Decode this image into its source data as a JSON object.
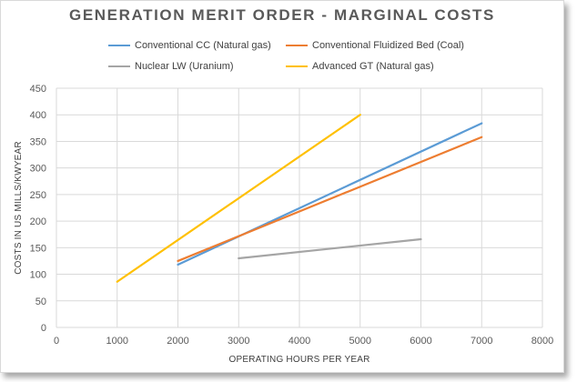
{
  "chart_data": {
    "type": "line",
    "title": "GENERATION MERIT ORDER - MARGINAL COSTS",
    "xlabel": "OPERATING HOURS PER YEAR",
    "ylabel": "COSTS IN US MILLS/KWYEAR",
    "xlim": [
      0,
      8000
    ],
    "ylim": [
      0,
      450
    ],
    "xticks": [
      0,
      1000,
      2000,
      3000,
      4000,
      5000,
      6000,
      7000,
      8000
    ],
    "yticks": [
      0,
      50,
      100,
      150,
      200,
      250,
      300,
      350,
      400,
      450
    ],
    "grid": true,
    "legend_position": "top",
    "series": [
      {
        "name": "Conventional CC (Natural gas)",
        "color": "#5b9bd5",
        "x": [
          2000,
          7000
        ],
        "y": [
          118,
          384
        ]
      },
      {
        "name": "Conventional Fluidized Bed (Coal)",
        "color": "#ed7d31",
        "x": [
          2000,
          7000
        ],
        "y": [
          125,
          358
        ]
      },
      {
        "name": "Nuclear LW (Uranium)",
        "color": "#a5a5a5",
        "x": [
          3000,
          6000
        ],
        "y": [
          130,
          166
        ]
      },
      {
        "name": "Advanced GT (Natural gas)",
        "color": "#ffc000",
        "x": [
          1000,
          5000
        ],
        "y": [
          86,
          400
        ]
      }
    ]
  }
}
